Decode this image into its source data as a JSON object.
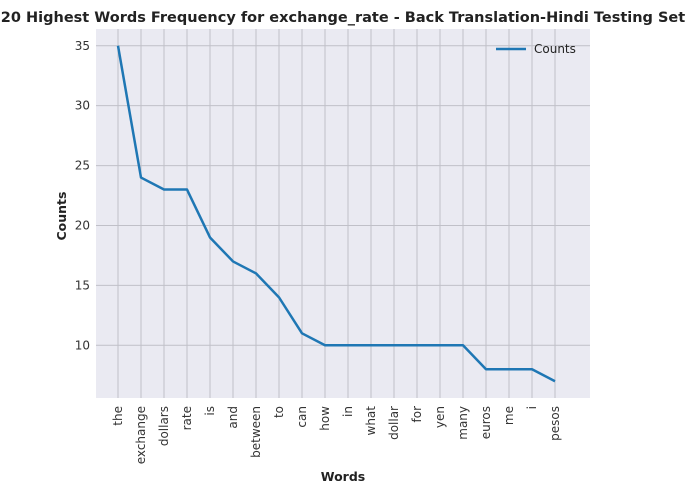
{
  "chart_data": {
    "type": "line",
    "title": "20 Highest Words Frequency for exchange_rate - Back Translation-Hindi Testing Set",
    "xlabel": "Words",
    "ylabel": "Counts",
    "categories": [
      "the",
      "exchange",
      "dollars",
      "rate",
      "is",
      "and",
      "between",
      "to",
      "can",
      "how",
      "in",
      "what",
      "dollar",
      "for",
      "yen",
      "many",
      "euros",
      "me",
      "i",
      "pesos"
    ],
    "series": [
      {
        "name": "Counts",
        "values": [
          35,
          24,
          23,
          23,
          19,
          17,
          16,
          14,
          11,
          10,
          10,
          10,
          10,
          10,
          10,
          10,
          8,
          8,
          8,
          7
        ]
      }
    ],
    "ylim": [
      5.6,
      36.4
    ],
    "yticks": [
      10,
      15,
      20,
      25,
      30,
      35
    ],
    "grid": true,
    "legend": "top-right",
    "colors": {
      "line": "#1f77b4",
      "plot_bg": "#eaeaf2",
      "grid": "#c0c0c8"
    }
  }
}
